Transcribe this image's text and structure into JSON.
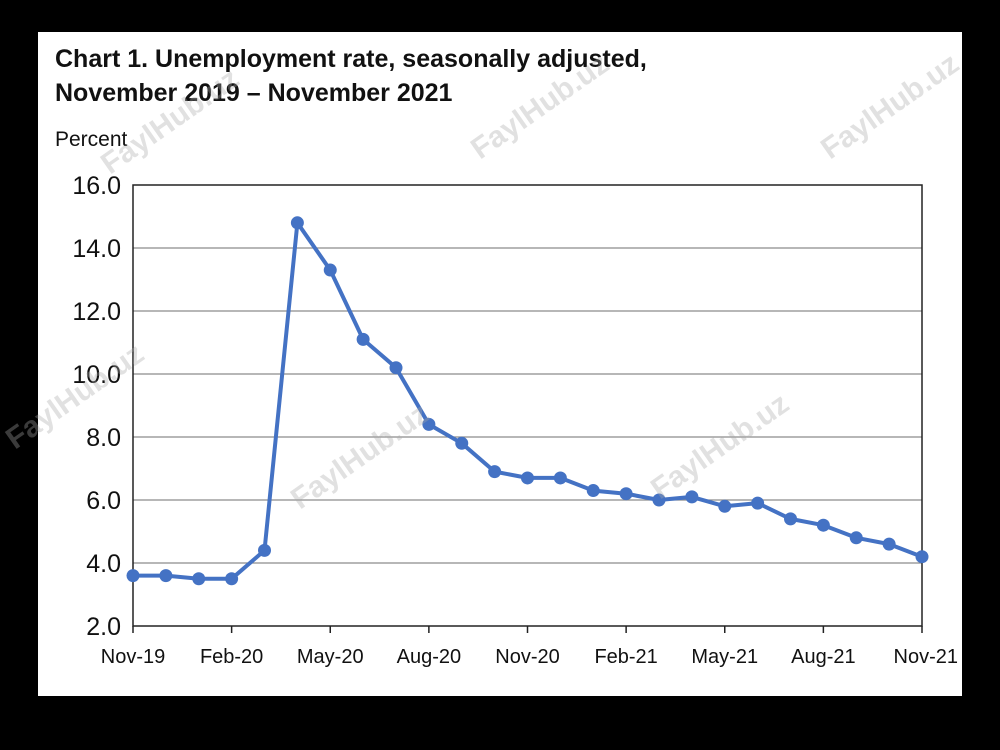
{
  "chart_data": {
    "type": "line",
    "title": "Chart 1. Unemployment rate, seasonally adjusted,",
    "subtitle": "November 2019 – November 2021",
    "ylabel": "Percent",
    "xlabel": "",
    "ylim": [
      2.0,
      16.0
    ],
    "yticks": [
      "2.0",
      "4.0",
      "6.0",
      "8.0",
      "10.0",
      "12.0",
      "14.0",
      "16.0"
    ],
    "xtick_labels": [
      "Nov-19",
      "Feb-20",
      "May-20",
      "Aug-20",
      "Nov-20",
      "Feb-21",
      "May-21",
      "Aug-21",
      "Nov-21"
    ],
    "x": [
      "2019-11",
      "2019-12",
      "2020-01",
      "2020-02",
      "2020-03",
      "2020-04",
      "2020-05",
      "2020-06",
      "2020-07",
      "2020-08",
      "2020-09",
      "2020-10",
      "2020-11",
      "2020-12",
      "2021-01",
      "2021-02",
      "2021-03",
      "2021-04",
      "2021-05",
      "2021-06",
      "2021-07",
      "2021-08",
      "2021-09",
      "2021-10",
      "2021-11"
    ],
    "values": [
      3.6,
      3.6,
      3.5,
      3.5,
      4.4,
      14.8,
      13.3,
      11.1,
      10.2,
      8.4,
      7.8,
      6.9,
      6.7,
      6.7,
      6.3,
      6.2,
      6.0,
      6.1,
      5.8,
      5.9,
      5.4,
      5.2,
      4.8,
      4.6,
      4.2
    ],
    "grid": true,
    "line_color": "#4472c4"
  },
  "watermark": "FaylHub.uz"
}
